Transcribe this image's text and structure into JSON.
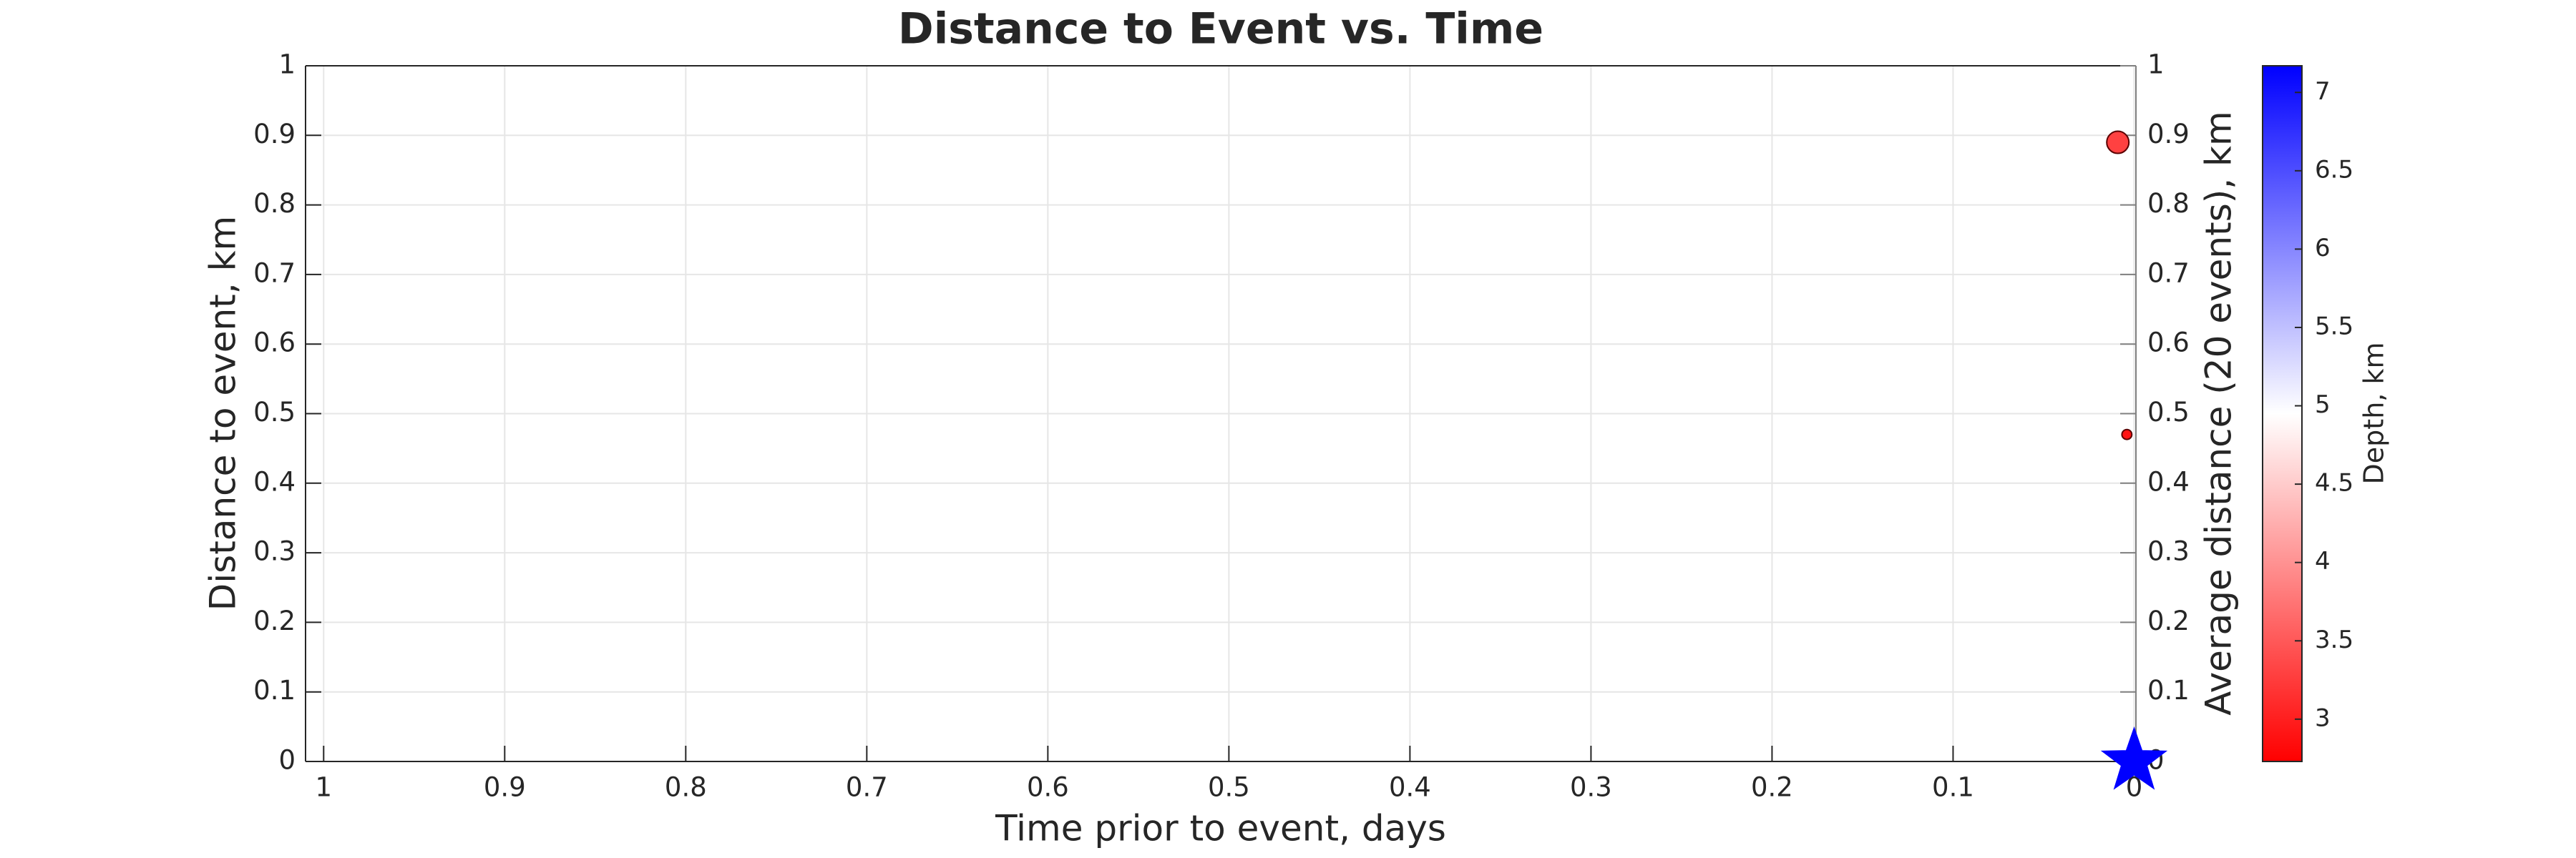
{
  "chart_data": {
    "type": "scatter",
    "title": "Distance to Event vs. Time",
    "x_label": "Time prior to event, days",
    "y_label": "Distance to event, km",
    "y2_label": "Average distance (20 events), km",
    "xlim": [
      1.01,
      -0.001
    ],
    "xticks": [
      1,
      0.9,
      0.8,
      0.7,
      0.6,
      0.5,
      0.4,
      0.3,
      0.2,
      0.1,
      0
    ],
    "ylim": [
      0,
      1
    ],
    "yticks": [
      0,
      0.1,
      0.2,
      0.3,
      0.4,
      0.5,
      0.6,
      0.7,
      0.8,
      0.9,
      1
    ],
    "y2lim": [
      0,
      1
    ],
    "y2ticks": [
      0,
      0.1,
      0.2,
      0.3,
      0.4,
      0.5,
      0.6,
      0.7,
      0.8,
      0.9,
      1
    ],
    "y2_color": "#808080",
    "grid": true,
    "series": [
      {
        "x": [
          0.009,
          0.004
        ],
        "values": [
          0.89,
          0.47
        ],
        "sizes": [
          60,
          12
        ],
        "depth": [
          3.3,
          2.9
        ],
        "edge_color": "#5a0000"
      },
      {
        "x": [
          0
        ],
        "values": [
          0
        ],
        "color": "#0000ff",
        "marker": "star"
      }
    ],
    "colorbar": {
      "label": "Depth, km",
      "clim": [
        2.73,
        7.17
      ],
      "ticks": [
        3,
        3.5,
        4,
        4.5,
        5,
        5.5,
        6,
        6.5,
        7
      ],
      "colormap": [
        "#ff0000",
        "#ffffff",
        "#0000ff"
      ]
    }
  }
}
